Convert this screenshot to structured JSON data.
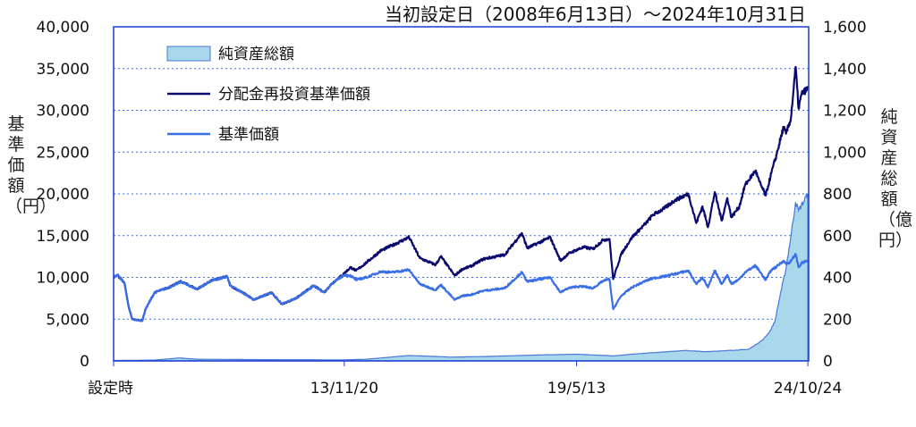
{
  "chart_data": {
    "type": "line",
    "title": "当初設定日（2008年6月13日）～2024年10月31日",
    "ylabel_left": "基準価額（円）",
    "ylabel_right": "純資産総額（億円）",
    "xlim": [
      "2008-06-13",
      "2024-10-31"
    ],
    "ylim_left": [
      0,
      40000
    ],
    "ylim_right": [
      0,
      1600
    ],
    "y_ticks_left": [
      "40,000",
      "35,000",
      "30,000",
      "25,000",
      "20,000",
      "15,000",
      "10,000",
      "5,000",
      "0"
    ],
    "y_ticks_right": [
      "1,600",
      "1,400",
      "1,200",
      "1,000",
      "800",
      "600",
      "400",
      "200",
      "0"
    ],
    "x_ticks": [
      {
        "date": "2008-06-13",
        "label": "設定時"
      },
      {
        "date": "2013-11-20",
        "label": "13/11/20"
      },
      {
        "date": "2019-05-13",
        "label": "19/5/13"
      },
      {
        "date": "2024-10-24",
        "label": "24/10/24"
      }
    ],
    "grid": "dotted horizontal",
    "legend_position": "top-left",
    "series": [
      {
        "name": "純資産総額",
        "kind": "area",
        "axis": "right",
        "color": "#a8d8ea",
        "edge_color": "#4a78d8",
        "points": [
          [
            "2008-06-13",
            2
          ],
          [
            "2009-06-01",
            4
          ],
          [
            "2010-01-01",
            14
          ],
          [
            "2010-06-01",
            8
          ],
          [
            "2012-01-01",
            6
          ],
          [
            "2013-11-20",
            5
          ],
          [
            "2014-06-01",
            8
          ],
          [
            "2015-06-01",
            26
          ],
          [
            "2016-06-01",
            18
          ],
          [
            "2017-06-01",
            22
          ],
          [
            "2018-06-01",
            28
          ],
          [
            "2019-05-13",
            32
          ],
          [
            "2020-03-23",
            24
          ],
          [
            "2020-12-01",
            36
          ],
          [
            "2021-12-01",
            50
          ],
          [
            "2022-06-01",
            44
          ],
          [
            "2023-06-01",
            55
          ],
          [
            "2023-10-01",
            100
          ],
          [
            "2023-12-01",
            140
          ],
          [
            "2024-01-15",
            190
          ],
          [
            "2024-03-01",
            320
          ],
          [
            "2024-04-15",
            430
          ],
          [
            "2024-06-01",
            600
          ],
          [
            "2024-07-10",
            760
          ],
          [
            "2024-08-05",
            720
          ],
          [
            "2024-10-24",
            800
          ]
        ]
      },
      {
        "name": "分配金再投資基準価額",
        "kind": "line",
        "axis": "left",
        "color": "#0a0a6e",
        "points": [
          [
            "2008-06-13",
            10000
          ],
          [
            "2008-07-15",
            10300
          ],
          [
            "2008-09-15",
            9300
          ],
          [
            "2008-10-20",
            6500
          ],
          [
            "2008-11-20",
            5000
          ],
          [
            "2009-02-15",
            4800
          ],
          [
            "2009-03-15",
            6200
          ],
          [
            "2009-06-01",
            8200
          ],
          [
            "2009-10-01",
            8800
          ],
          [
            "2010-01-15",
            9500
          ],
          [
            "2010-06-01",
            8600
          ],
          [
            "2010-10-01",
            9600
          ],
          [
            "2011-02-15",
            10100
          ],
          [
            "2011-03-15",
            9000
          ],
          [
            "2011-08-15",
            7800
          ],
          [
            "2011-10-01",
            7300
          ],
          [
            "2012-03-01",
            8200
          ],
          [
            "2012-06-01",
            6800
          ],
          [
            "2012-10-01",
            7500
          ],
          [
            "2013-03-01",
            9000
          ],
          [
            "2013-06-01",
            8200
          ],
          [
            "2013-08-01",
            9200
          ],
          [
            "2013-11-20",
            10500
          ],
          [
            "2014-01-15",
            11200
          ],
          [
            "2014-03-01",
            10800
          ],
          [
            "2014-06-01",
            11800
          ],
          [
            "2014-10-01",
            13200
          ],
          [
            "2015-01-01",
            13800
          ],
          [
            "2015-06-01",
            14800
          ],
          [
            "2015-09-01",
            12300
          ],
          [
            "2016-01-15",
            11500
          ],
          [
            "2016-03-01",
            12500
          ],
          [
            "2016-06-28",
            10200
          ],
          [
            "2016-09-01",
            11000
          ],
          [
            "2016-11-10",
            11300
          ],
          [
            "2017-03-01",
            12200
          ],
          [
            "2017-09-01",
            12700
          ],
          [
            "2018-01-26",
            15300
          ],
          [
            "2018-03-15",
            13500
          ],
          [
            "2018-09-28",
            14800
          ],
          [
            "2018-12-25",
            12000
          ],
          [
            "2019-03-01",
            12800
          ],
          [
            "2019-05-13",
            13300
          ],
          [
            "2019-07-15",
            13600
          ],
          [
            "2019-10-01",
            13400
          ],
          [
            "2019-12-30",
            14500
          ],
          [
            "2020-02-20",
            14600
          ],
          [
            "2020-03-23",
            9800
          ],
          [
            "2020-06-01",
            12800
          ],
          [
            "2020-09-01",
            14800
          ],
          [
            "2020-12-31",
            16500
          ],
          [
            "2021-03-01",
            17500
          ],
          [
            "2021-06-01",
            18200
          ],
          [
            "2021-09-01",
            19200
          ],
          [
            "2021-12-31",
            20000
          ],
          [
            "2022-03-08",
            16500
          ],
          [
            "2022-05-01",
            18500
          ],
          [
            "2022-06-17",
            16000
          ],
          [
            "2022-08-15",
            20200
          ],
          [
            "2022-10-13",
            16800
          ],
          [
            "2022-12-01",
            19500
          ],
          [
            "2023-01-05",
            17200
          ],
          [
            "2023-03-15",
            18500
          ],
          [
            "2023-05-01",
            21000
          ],
          [
            "2023-07-31",
            22800
          ],
          [
            "2023-09-01",
            21500
          ],
          [
            "2023-10-27",
            19800
          ],
          [
            "2023-12-15",
            22500
          ],
          [
            "2024-01-31",
            24800
          ],
          [
            "2024-03-29",
            28000
          ],
          [
            "2024-04-19",
            27200
          ],
          [
            "2024-05-31",
            29000
          ],
          [
            "2024-07-11",
            35200
          ],
          [
            "2024-08-05",
            30200
          ],
          [
            "2024-09-01",
            32000
          ],
          [
            "2024-10-24",
            32600
          ]
        ]
      },
      {
        "name": "基準価額",
        "kind": "line",
        "axis": "left",
        "color": "#3b6fe6",
        "points": [
          [
            "2008-06-13",
            10000
          ],
          [
            "2008-07-15",
            10300
          ],
          [
            "2008-09-15",
            9300
          ],
          [
            "2008-10-20",
            6500
          ],
          [
            "2008-11-20",
            5000
          ],
          [
            "2009-02-15",
            4800
          ],
          [
            "2009-03-15",
            6200
          ],
          [
            "2009-06-01",
            8200
          ],
          [
            "2009-10-01",
            8800
          ],
          [
            "2010-01-15",
            9500
          ],
          [
            "2010-06-01",
            8600
          ],
          [
            "2010-10-01",
            9600
          ],
          [
            "2011-02-15",
            10100
          ],
          [
            "2011-03-15",
            9000
          ],
          [
            "2011-08-15",
            7800
          ],
          [
            "2011-10-01",
            7300
          ],
          [
            "2012-03-01",
            8200
          ],
          [
            "2012-06-01",
            6800
          ],
          [
            "2012-10-01",
            7500
          ],
          [
            "2013-03-01",
            9000
          ],
          [
            "2013-06-01",
            8200
          ],
          [
            "2013-08-01",
            9200
          ],
          [
            "2013-11-20",
            10300
          ],
          [
            "2014-01-15",
            10200
          ],
          [
            "2014-03-01",
            9700
          ],
          [
            "2014-06-01",
            10000
          ],
          [
            "2014-10-01",
            10700
          ],
          [
            "2015-01-01",
            10600
          ],
          [
            "2015-06-01",
            10900
          ],
          [
            "2015-09-01",
            9200
          ],
          [
            "2016-01-15",
            8500
          ],
          [
            "2016-03-01",
            9100
          ],
          [
            "2016-06-28",
            7300
          ],
          [
            "2016-09-01",
            7800
          ],
          [
            "2016-11-10",
            7900
          ],
          [
            "2017-03-01",
            8400
          ],
          [
            "2017-09-01",
            8700
          ],
          [
            "2018-01-26",
            10600
          ],
          [
            "2018-03-15",
            9500
          ],
          [
            "2018-09-28",
            10000
          ],
          [
            "2018-12-25",
            8200
          ],
          [
            "2019-03-01",
            8700
          ],
          [
            "2019-05-13",
            8900
          ],
          [
            "2019-07-15",
            8900
          ],
          [
            "2019-10-01",
            8700
          ],
          [
            "2019-12-30",
            9600
          ],
          [
            "2020-02-20",
            9800
          ],
          [
            "2020-03-23",
            6200
          ],
          [
            "2020-06-01",
            7800
          ],
          [
            "2020-09-01",
            8800
          ],
          [
            "2020-12-31",
            9600
          ],
          [
            "2021-03-01",
            9900
          ],
          [
            "2021-06-01",
            10100
          ],
          [
            "2021-09-01",
            10400
          ],
          [
            "2021-12-31",
            10800
          ],
          [
            "2022-03-08",
            9200
          ],
          [
            "2022-05-01",
            10000
          ],
          [
            "2022-06-17",
            8800
          ],
          [
            "2022-08-15",
            10800
          ],
          [
            "2022-10-13",
            9200
          ],
          [
            "2022-12-01",
            10300
          ],
          [
            "2023-01-05",
            9200
          ],
          [
            "2023-03-15",
            9800
          ],
          [
            "2023-05-01",
            10600
          ],
          [
            "2023-07-31",
            11400
          ],
          [
            "2023-09-01",
            10800
          ],
          [
            "2023-10-27",
            9700
          ],
          [
            "2023-12-15",
            10900
          ],
          [
            "2024-01-31",
            11300
          ],
          [
            "2024-03-29",
            12000
          ],
          [
            "2024-04-19",
            11600
          ],
          [
            "2024-05-31",
            11900
          ],
          [
            "2024-07-11",
            12800
          ],
          [
            "2024-08-05",
            11200
          ],
          [
            "2024-09-01",
            11700
          ],
          [
            "2024-10-24",
            12000
          ]
        ]
      }
    ]
  }
}
